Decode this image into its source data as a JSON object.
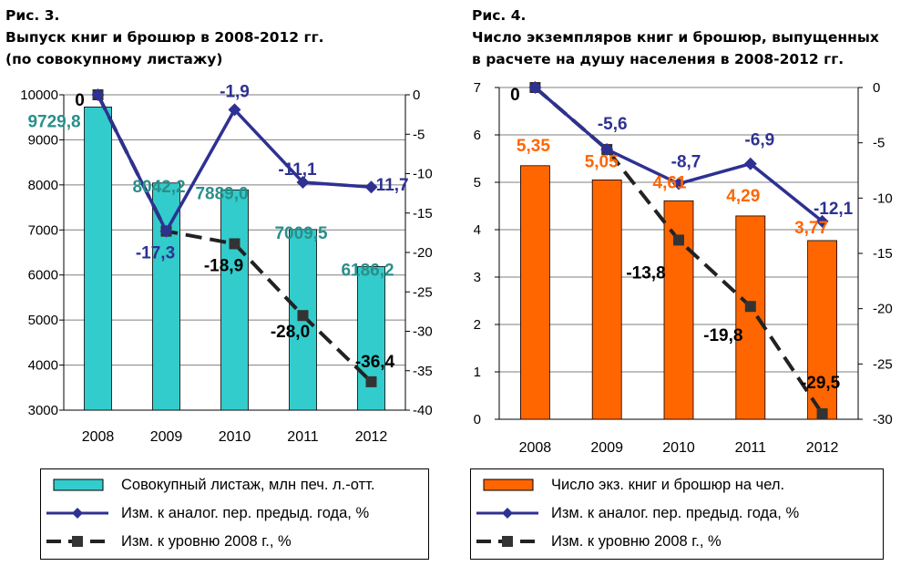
{
  "charts": [
    {
      "fig_label": "Рис. 3.",
      "title_lines": [
        "Выпуск книг и брошюр в 2008-2012 гг.",
        "(по совокупному листажу)"
      ],
      "bar_color": "#33cccc",
      "bar_label_color": "#2a8f8a",
      "legend": [
        "Совокупный листаж, млн печ. л.-отт.",
        "Изм. к аналог. пер. предыд. года, %",
        "Изм. к уровню 2008 г., %"
      ]
    },
    {
      "fig_label": "Рис. 4.",
      "title_lines": [
        "Число экземпляров книг и брошюр, выпущенных",
        "в расчете на душу населения в 2008-2012 гг."
      ],
      "bar_color": "#ff6600",
      "bar_label_color": "#ff6600",
      "legend": [
        "Число экз. книг и брошюр на чел.",
        "Изм. к аналог. пер. предыд. года, %",
        "Изм. к уровню 2008 г., %"
      ]
    }
  ],
  "chart_data": [
    {
      "type": "bar",
      "categories": [
        "2008",
        "2009",
        "2010",
        "2011",
        "2012"
      ],
      "series": [
        {
          "name": "Совокупный листаж, млн печ. л.-отт.",
          "type": "bar",
          "axis": "left",
          "values": [
            9729.8,
            8042.2,
            7889.0,
            7009.5,
            6186.2
          ],
          "labels": [
            "9729,8",
            "8042,2",
            "7889,0",
            "7009,5",
            "6186,2"
          ]
        },
        {
          "name": "Изм. к аналог. пер. предыд. года, %",
          "type": "line",
          "axis": "right",
          "values": [
            0,
            -17.3,
            -1.9,
            -11.1,
            -11.7
          ],
          "labels": [
            "0",
            "-17,3",
            "-1,9",
            "-11,1",
            "-11,7"
          ]
        },
        {
          "name": "Изм. к уровню 2008 г., %",
          "type": "line",
          "axis": "right",
          "values": [
            0,
            -17.3,
            -18.9,
            -28.0,
            -36.4
          ],
          "labels": [
            "",
            "",
            "-18,9",
            "-28,0",
            "-36,4"
          ]
        }
      ],
      "ylim": [
        3000,
        10000
      ],
      "yticks": [
        "3000",
        "4000",
        "5000",
        "6000",
        "7000",
        "8000",
        "9000",
        "10000"
      ],
      "y2lim": [
        -40,
        0
      ],
      "y2ticks": [
        "-40",
        "-35",
        "-30",
        "-25",
        "-20",
        "-15",
        "-10",
        "-5",
        "0"
      ],
      "grid": true,
      "legend_position": "bottom"
    },
    {
      "type": "bar",
      "categories": [
        "2008",
        "2009",
        "2010",
        "2011",
        "2012"
      ],
      "series": [
        {
          "name": "Число экз. книг и брошюр на чел.",
          "type": "bar",
          "axis": "left",
          "values": [
            5.35,
            5.05,
            4.61,
            4.29,
            3.77
          ],
          "labels": [
            "5,35",
            "5,05",
            "4,61",
            "4,29",
            "3,77"
          ]
        },
        {
          "name": "Изм. к аналог. пер. предыд. года, %",
          "type": "line",
          "axis": "right",
          "values": [
            0,
            -5.6,
            -8.7,
            -6.9,
            -12.1
          ],
          "labels": [
            "0",
            "-5,6",
            "-8,7",
            "-6,9",
            "-12,1"
          ]
        },
        {
          "name": "Изм. к уровню 2008 г., %",
          "type": "line",
          "axis": "right",
          "values": [
            0,
            -5.6,
            -13.8,
            -19.8,
            -29.5
          ],
          "labels": [
            "",
            "",
            "-13,8",
            "-19,8",
            "-29,5"
          ]
        }
      ],
      "ylim": [
        0,
        7
      ],
      "yticks": [
        "0",
        "1",
        "2",
        "3",
        "4",
        "5",
        "6",
        "7"
      ],
      "y2lim": [
        -30,
        0
      ],
      "y2ticks": [
        "-30",
        "-25",
        "-20",
        "-15",
        "-10",
        "-5",
        "0"
      ],
      "grid": true,
      "legend_position": "bottom"
    }
  ]
}
